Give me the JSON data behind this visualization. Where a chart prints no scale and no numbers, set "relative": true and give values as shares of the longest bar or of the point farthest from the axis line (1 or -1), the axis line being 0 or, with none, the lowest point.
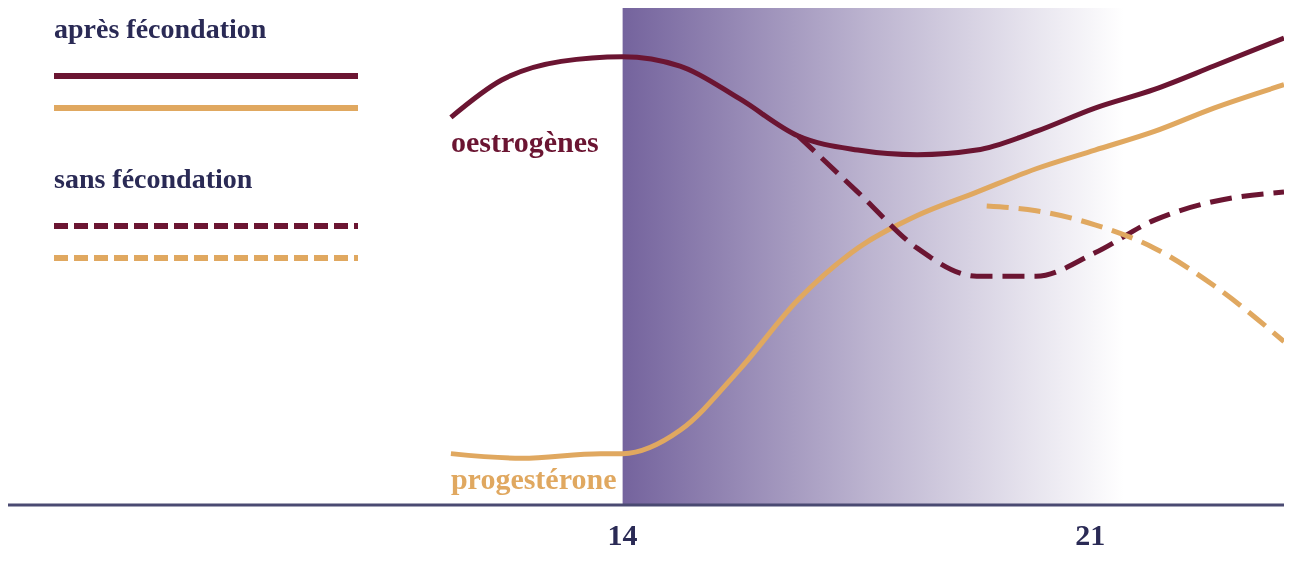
{
  "chart_data": {
    "type": "line",
    "relative": true,
    "xlim": [
      4.8,
      23.9
    ],
    "xticks": [
      14,
      21
    ],
    "grid": false,
    "annotations": [
      "après fécondation",
      "sans fécondation"
    ],
    "bands": [
      {
        "axis": "x",
        "from": 14,
        "to": 21.5,
        "color": "#6d5b98"
      }
    ],
    "series": [
      {
        "name": "oestrogènes",
        "color": "#6b1532",
        "line_style": "solid",
        "x": [
          11.43,
          12.19,
          13.08,
          14,
          14.86,
          15.75,
          16.63,
          17.52,
          18.41,
          19.3,
          20.19,
          21.07,
          21.96,
          22.85,
          23.9
        ],
        "values": [
          0.83,
          0.91,
          0.95,
          0.96,
          0.94,
          0.87,
          0.79,
          0.76,
          0.75,
          0.76,
          0.8,
          0.85,
          0.89,
          0.94,
          1
        ]
      },
      {
        "name": "progestérone",
        "color": "#e0a860",
        "line_style": "solid",
        "x": [
          11.43,
          12.49,
          13.67,
          14,
          14.86,
          15.75,
          16.63,
          17.52,
          18.41,
          19.3,
          20.19,
          21.07,
          21.96,
          22.85,
          23.9
        ],
        "values": [
          0.11,
          0.1,
          0.11,
          0.11,
          0.16,
          0.29,
          0.44,
          0.55,
          0.62,
          0.67,
          0.72,
          0.76,
          0.8,
          0.85,
          0.9
        ]
      },
      {
        "color": "#6b1532",
        "line_style": "dashed",
        "x": [
          16.63,
          17.52,
          18.41,
          19.3,
          20.19,
          21.07,
          21.96,
          22.85,
          23.9
        ],
        "values": [
          0.79,
          0.67,
          0.55,
          0.49,
          0.49,
          0.54,
          0.61,
          0.65,
          0.67
        ]
      },
      {
        "color": "#e0a860",
        "line_style": "dashed",
        "x": [
          19.45,
          20.19,
          21.07,
          21.96,
          22.85,
          23.9
        ],
        "values": [
          0.64,
          0.63,
          0.6,
          0.55,
          0.47,
          0.35
        ]
      }
    ]
  }
}
